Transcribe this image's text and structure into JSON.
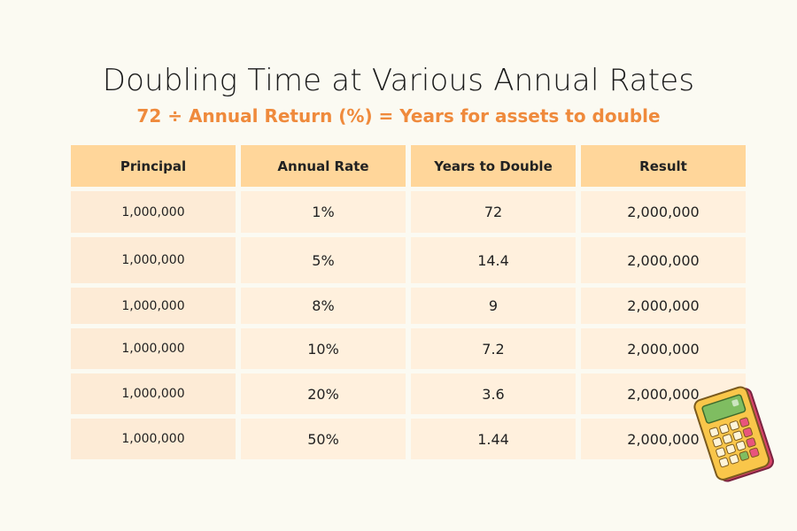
{
  "title": "Doubling Time at Various Annual Rates",
  "subtitle": "72 ÷ Annual Return (%) = Years for assets to double",
  "table": {
    "headers": [
      "Principal",
      "Annual Rate",
      "Years to Double",
      "Result"
    ],
    "rows": [
      {
        "principal": "1,000,000",
        "rate": "1%",
        "years": "72",
        "result": "2,000,000"
      },
      {
        "principal": "1,000,000",
        "rate": "5%",
        "years": "14.4",
        "result": "2,000,000"
      },
      {
        "principal": "1,000,000",
        "rate": "8%",
        "years": "9",
        "result": "2,000,000"
      },
      {
        "principal": "1,000,000",
        "rate": "10%",
        "years": "7.2",
        "result": "2,000,000"
      },
      {
        "principal": "1,000,000",
        "rate": "20%",
        "years": "3.6",
        "result": "2,000,000"
      },
      {
        "principal": "1,000,000",
        "rate": "50%",
        "years": "1.44",
        "result": "2,000,000"
      }
    ]
  },
  "colors": {
    "background": "#fbfaf2",
    "header_fill": "#ffd69a",
    "row_fill": "#fff0dd",
    "accent": "#ef8a3c"
  },
  "decoration": {
    "icon": "calculator-icon"
  }
}
